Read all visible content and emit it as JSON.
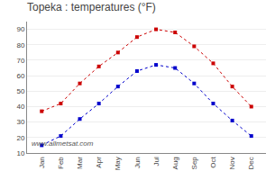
{
  "chart_data": {
    "type": "line",
    "title": "Topeka : temperatures (°F)",
    "categories": [
      "Jan",
      "Feb",
      "Mar",
      "Apr",
      "May",
      "Jun",
      "Jul",
      "Aug",
      "Sep",
      "Oct",
      "Nov",
      "Dec"
    ],
    "series": [
      {
        "color": "#cc0000",
        "marker": "square",
        "line_style": "dotted",
        "values": [
          37,
          42,
          55,
          66,
          75,
          85,
          90,
          88,
          79,
          68,
          53,
          40
        ]
      },
      {
        "color": "#0000cc",
        "marker": "square",
        "line_style": "dotted",
        "values": [
          15,
          21,
          32,
          42,
          53,
          63,
          67,
          65,
          55,
          42,
          31,
          21
        ]
      }
    ],
    "ylim": [
      10,
      95
    ],
    "yticks": [
      10,
      20,
      30,
      40,
      50,
      60,
      70,
      80,
      90
    ],
    "grid": true,
    "annotations": [
      "www.allmetsat.com"
    ]
  }
}
